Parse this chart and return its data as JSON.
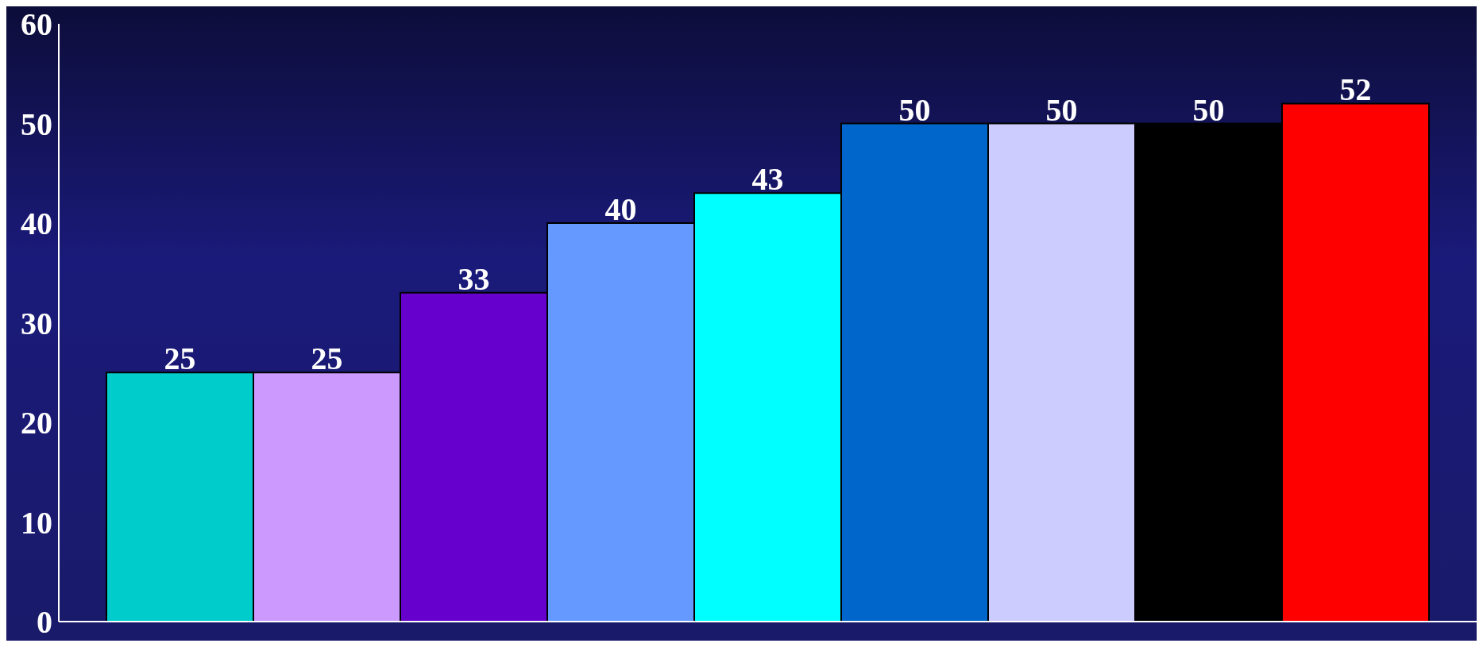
{
  "chart_data": {
    "type": "bar",
    "categories": [
      null,
      null,
      null,
      null,
      null,
      null,
      null,
      null,
      null
    ],
    "values": [
      25,
      25,
      33,
      40,
      43,
      50,
      50,
      50,
      52
    ],
    "colors": [
      "#00cccc",
      "#cc99ff",
      "#6600cc",
      "#6699ff",
      "#00ffff",
      "#0066cc",
      "#ccccff",
      "#000000",
      "#ff0000"
    ],
    "ylim": [
      0,
      60
    ],
    "yticks": [
      0,
      10,
      20,
      30,
      40,
      50,
      60
    ],
    "data_labels": true,
    "tick_labels": "y",
    "grid": false,
    "legend": false
  }
}
